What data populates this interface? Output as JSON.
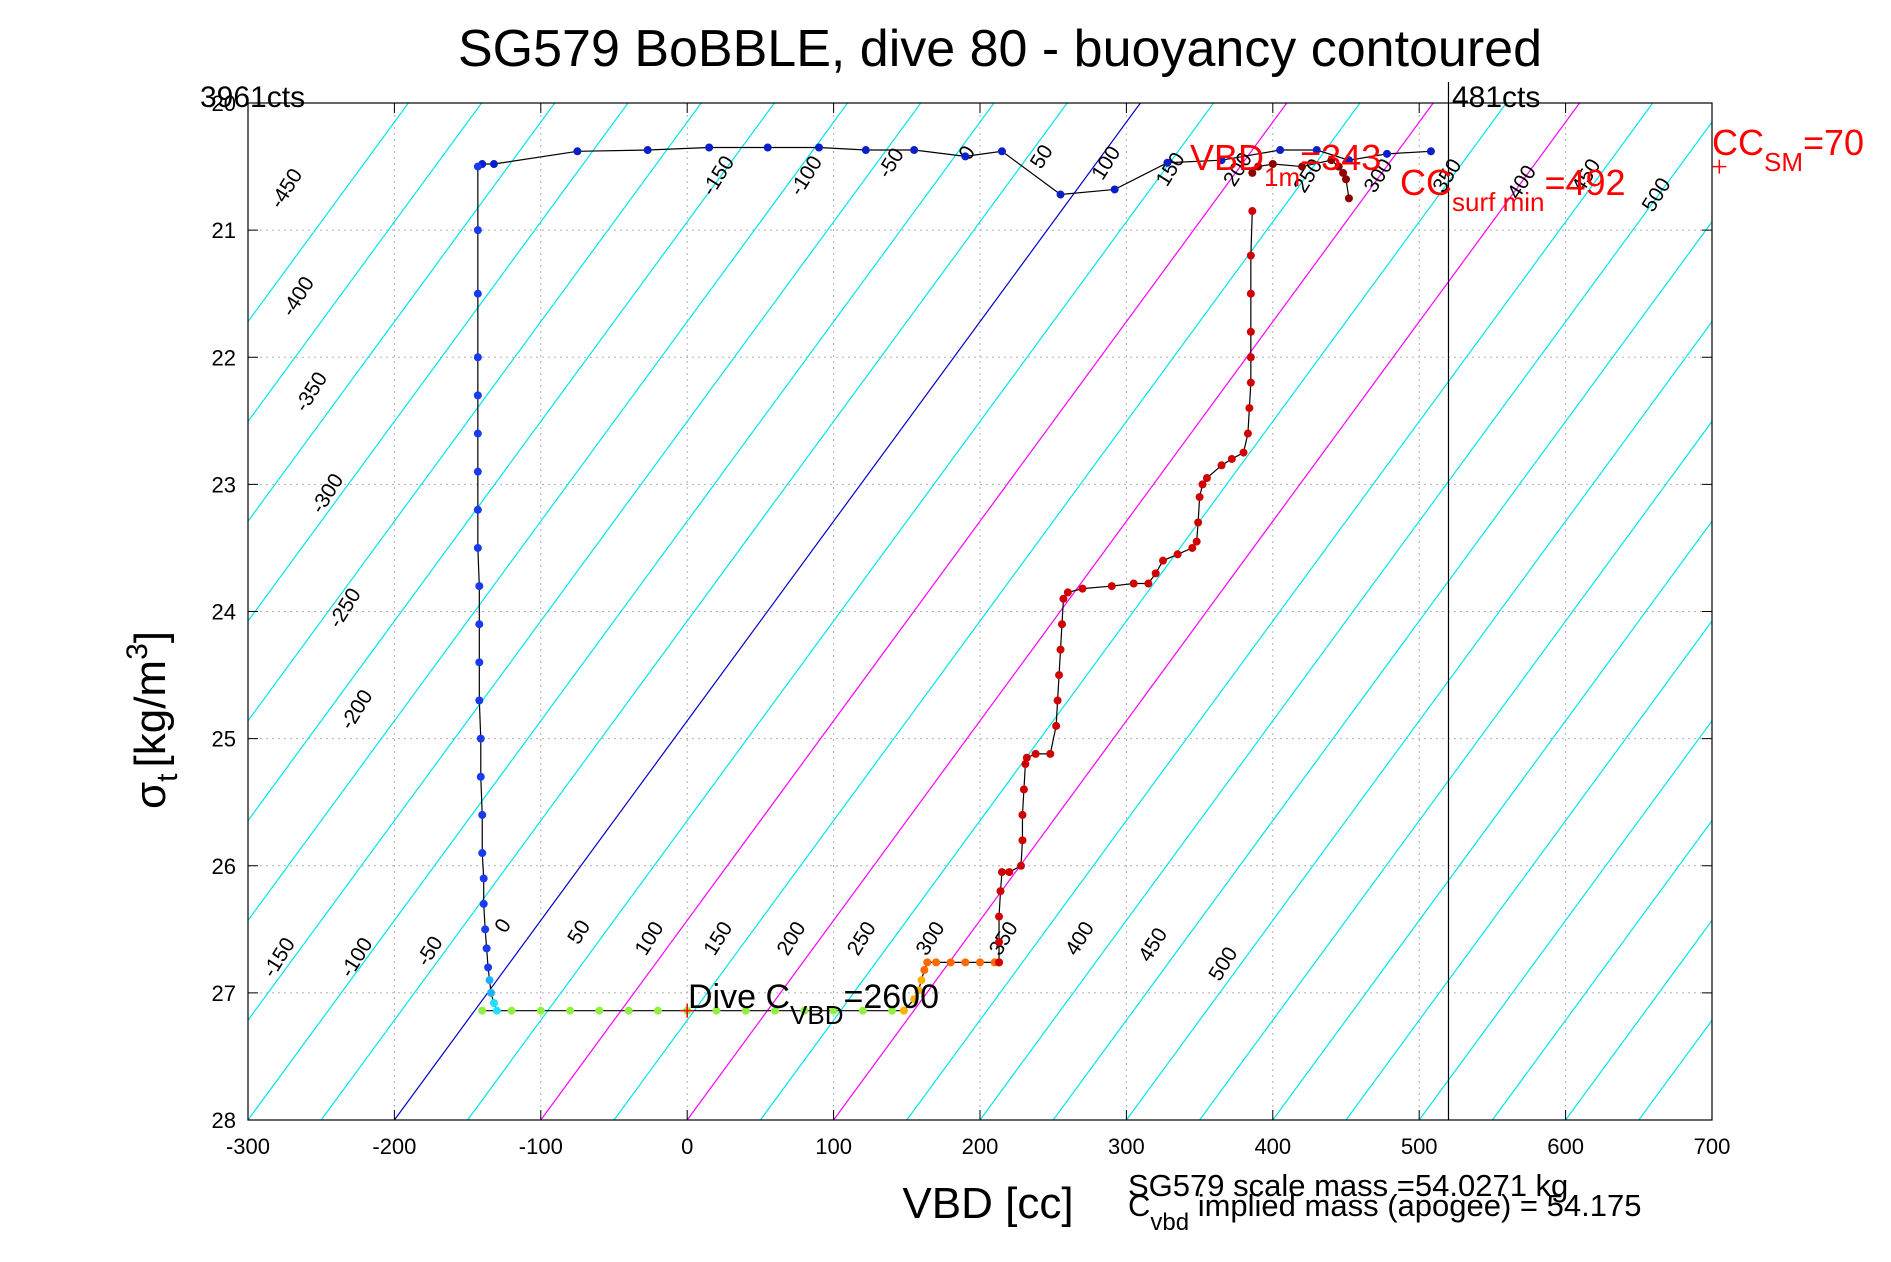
{
  "chart_data": {
    "type": "scatter",
    "title": "SG579 BoBBLE, dive 80 - buoyancy contoured",
    "xlabel": "VBD [cc]",
    "ylabel": "σ",
    "ylabel_sub": "t",
    "ylabel_tail": "[kg/m",
    "ylabel_sup": "3",
    "ylabel_close": "]",
    "xlim": [
      -300,
      700
    ],
    "ylim": [
      20,
      28
    ],
    "y_reversed": true,
    "grid": true,
    "x_ticks": [
      "-300",
      "-200",
      "-100",
      "0",
      "100",
      "200",
      "300",
      "400",
      "500",
      "600",
      "700"
    ],
    "y_ticks": [
      "20",
      "21",
      "22",
      "23",
      "24",
      "25",
      "26",
      "27",
      "28"
    ],
    "x_tick_values": [
      -300,
      -200,
      -100,
      0,
      100,
      200,
      300,
      400,
      500,
      600,
      700
    ],
    "y_tick_values": [
      20,
      21,
      22,
      23,
      24,
      25,
      26,
      27,
      28
    ],
    "counts_left": "3961cts",
    "counts_right": "481cts",
    "max_vbd_line_x": 520,
    "colors": {
      "contour": "#00e5ee",
      "zero_contour": "#0000cc",
      "magenta": "#ff00ff",
      "profile_line": "#000000",
      "label_red": "#ff0000"
    },
    "annotations": {
      "vbd_1m": {
        "pre": "VBD",
        "sub": "1m",
        "post": "=343"
      },
      "cc_surf_min": {
        "pre": "CC",
        "sub": "surf min",
        "post": "=492"
      },
      "cc_sm": {
        "pre": "CC",
        "sub": "SM",
        "post": "=70"
      },
      "dive_cvbd": {
        "pre": "Dive C",
        "sub": "VBD",
        "post": "=2600"
      },
      "scale_mass": "SG579 scale mass =54.0271 kg",
      "cvbd_implied": {
        "pre": "C",
        "sub": "vbd",
        "post": " implied mass (apogee) = 54.175"
      }
    },
    "contours": {
      "slope_sigma_per_cc": 0.0157,
      "top_labels": [
        {
          "value": "-450",
          "x": -270,
          "y": 20.7
        },
        {
          "value": "-400",
          "x": -262,
          "y": 21.55
        },
        {
          "value": "-350",
          "x": -253,
          "y": 22.3
        },
        {
          "value": "-300",
          "x": -242,
          "y": 23.1
        },
        {
          "value": "-250",
          "x": -230,
          "y": 24.0
        },
        {
          "value": "-200",
          "x": -222,
          "y": 24.8
        },
        {
          "value": "-150",
          "x": 25,
          "y": 20.6
        },
        {
          "value": "-100",
          "x": 85,
          "y": 20.6
        },
        {
          "value": "-50",
          "x": 143,
          "y": 20.5
        },
        {
          "value": "0",
          "x": 195,
          "y": 20.42
        },
        {
          "value": "50",
          "x": 246,
          "y": 20.45
        },
        {
          "value": "100",
          "x": 290,
          "y": 20.5
        },
        {
          "value": "150",
          "x": 334,
          "y": 20.55
        },
        {
          "value": "200",
          "x": 380,
          "y": 20.55
        },
        {
          "value": "250",
          "x": 428,
          "y": 20.6
        },
        {
          "value": "300",
          "x": 476,
          "y": 20.6
        },
        {
          "value": "350",
          "x": 523,
          "y": 20.6
        },
        {
          "value": "400",
          "x": 574,
          "y": 20.65
        },
        {
          "value": "450",
          "x": 618,
          "y": 20.6
        },
        {
          "value": "500",
          "x": 666,
          "y": 20.75
        }
      ],
      "bottom_labels": [
        {
          "value": "-150",
          "x": -275,
          "y": 26.75
        },
        {
          "value": "-100",
          "x": -222,
          "y": 26.75
        },
        {
          "value": "-50",
          "x": -172,
          "y": 26.7
        },
        {
          "value": "0",
          "x": -122,
          "y": 26.5
        },
        {
          "value": "50",
          "x": -70,
          "y": 26.55
        },
        {
          "value": "100",
          "x": -22,
          "y": 26.6
        },
        {
          "value": "150",
          "x": 25,
          "y": 26.6
        },
        {
          "value": "200",
          "x": 75,
          "y": 26.6
        },
        {
          "value": "250",
          "x": 123,
          "y": 26.6
        },
        {
          "value": "300",
          "x": 170,
          "y": 26.6
        },
        {
          "value": "350",
          "x": 220,
          "y": 26.6
        },
        {
          "value": "400",
          "x": 272,
          "y": 26.6
        },
        {
          "value": "450",
          "x": 322,
          "y": 26.65
        },
        {
          "value": "500",
          "x": 370,
          "y": 26.8
        }
      ]
    },
    "series": [
      {
        "segment": "descent_surface",
        "x": [
          -140,
          -132,
          -75,
          -27,
          15,
          55,
          90,
          122,
          155,
          190,
          215,
          255,
          292,
          328,
          365,
          405,
          430,
          452,
          478,
          508
        ],
        "y": [
          20.48,
          20.48,
          20.38,
          20.37,
          20.35,
          20.35,
          20.35,
          20.37,
          20.37,
          20.42,
          20.38,
          20.72,
          20.68,
          20.47,
          20.45,
          20.37,
          20.37,
          20.45,
          20.4,
          20.38
        ]
      },
      {
        "segment": "descent_blue",
        "x": [
          -143,
          -143,
          -143,
          -143,
          -143,
          -143,
          -143,
          -143,
          -143,
          -142,
          -142,
          -142,
          -142,
          -141,
          -141,
          -140,
          -140,
          -139,
          -139,
          -138,
          -137,
          -136,
          -135,
          -134,
          -132,
          -130
        ],
        "y": [
          20.5,
          21.0,
          21.5,
          22.0,
          22.3,
          22.6,
          22.9,
          23.2,
          23.5,
          23.8,
          24.1,
          24.4,
          24.7,
          25.0,
          25.3,
          25.6,
          25.9,
          26.1,
          26.3,
          26.5,
          26.65,
          26.8,
          26.9,
          27.0,
          27.08,
          27.14
        ]
      },
      {
        "segment": "bottom_green",
        "x": [
          -140,
          -120,
          -100,
          -80,
          -60,
          -40,
          -20,
          0,
          20,
          40,
          60,
          80,
          100,
          120,
          140,
          148
        ],
        "y": [
          27.14,
          27.14,
          27.14,
          27.14,
          27.14,
          27.14,
          27.14,
          27.14,
          27.14,
          27.14,
          27.14,
          27.14,
          27.14,
          27.14,
          27.14,
          27.14
        ]
      },
      {
        "segment": "climb_orange",
        "x": [
          148,
          155,
          158,
          160,
          162,
          164,
          170,
          180,
          190,
          200,
          210,
          213
        ],
        "y": [
          27.14,
          27.05,
          26.98,
          26.9,
          26.82,
          26.76,
          26.76,
          26.76,
          26.76,
          26.76,
          26.76,
          26.76
        ]
      },
      {
        "segment": "climb_red",
        "x": [
          213,
          213,
          213,
          214,
          215,
          220,
          228,
          229,
          229,
          230,
          231,
          232,
          238,
          248,
          252,
          253,
          254,
          255,
          256,
          257,
          260,
          270,
          290,
          305,
          315,
          320,
          325,
          335,
          345,
          348,
          349,
          350,
          352,
          355,
          365,
          372,
          380,
          383,
          384,
          385,
          385,
          385,
          385,
          385,
          386
        ],
        "y": [
          26.76,
          26.6,
          26.4,
          26.2,
          26.05,
          26.05,
          26.0,
          25.8,
          25.6,
          25.4,
          25.2,
          25.15,
          25.12,
          25.12,
          24.9,
          24.7,
          24.5,
          24.3,
          24.1,
          23.9,
          23.85,
          23.82,
          23.8,
          23.78,
          23.78,
          23.7,
          23.6,
          23.55,
          23.5,
          23.45,
          23.3,
          23.1,
          23.0,
          22.95,
          22.85,
          22.8,
          22.75,
          22.6,
          22.4,
          22.2,
          22.0,
          21.8,
          21.5,
          21.2,
          20.85
        ]
      },
      {
        "segment": "surface_darkred",
        "x": [
          386,
          390,
          400,
          420,
          440,
          445,
          448,
          450,
          452
        ],
        "y": [
          20.55,
          20.5,
          20.48,
          20.5,
          20.45,
          20.5,
          20.55,
          20.6,
          20.75
        ]
      }
    ],
    "markers": [
      {
        "name": "dive-cvbd-marker",
        "x": 0,
        "y": 27.14
      },
      {
        "name": "cc-sm-marker",
        "x": 705,
        "y": 20.5
      }
    ]
  }
}
